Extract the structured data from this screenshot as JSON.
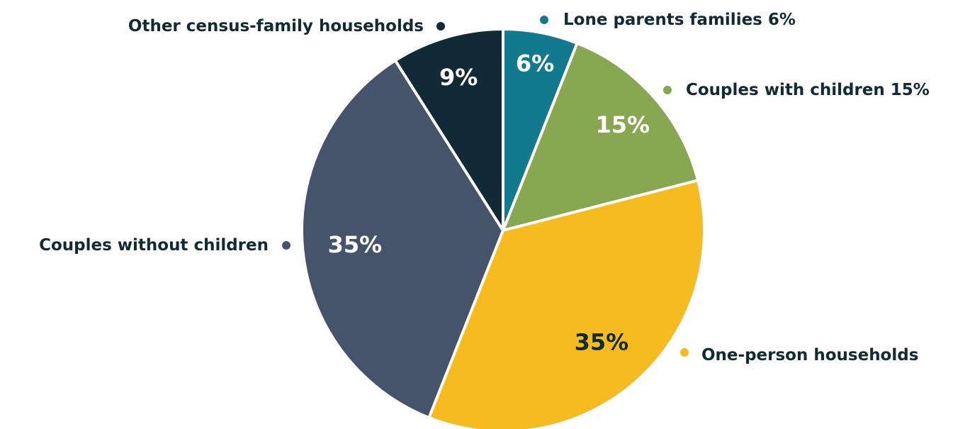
{
  "chart_data": {
    "type": "pie",
    "slices": [
      {
        "label": "Lone parents families 6%",
        "value": 6,
        "value_label": "6%",
        "color": "#117a8f",
        "value_text_color": "#ffffff"
      },
      {
        "label": "Couples with children 15%",
        "value": 15,
        "value_label": "15%",
        "color": "#87a750",
        "value_text_color": "#ffffff"
      },
      {
        "label": "One-person households",
        "value": 35,
        "value_label": "35%",
        "color": "#f6bb1f",
        "value_text_color": "#102a36"
      },
      {
        "label": "Couples without children",
        "value": 35,
        "value_label": "35%",
        "color": "#45546b",
        "value_text_color": "#ffffff"
      },
      {
        "label": "Other census-family households",
        "value": 9,
        "value_label": "9%",
        "color": "#102a36",
        "value_text_color": "#ffffff"
      }
    ]
  }
}
